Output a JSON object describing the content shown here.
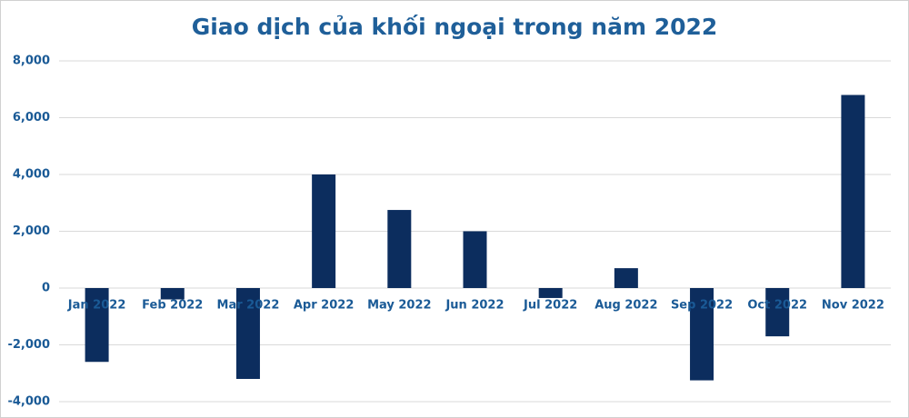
{
  "chart_data": {
    "type": "bar",
    "title": "Giao dịch của khối ngoại trong năm 2022",
    "categories": [
      "Jan 2022",
      "Feb 2022",
      "Mar 2022",
      "Apr 2022",
      "May 2022",
      "Jun 2022",
      "Jul 2022",
      "Aug 2022",
      "Sep 2022",
      "Oct 2022",
      "Nov 2022"
    ],
    "values": [
      -2600,
      -400,
      -3200,
      4000,
      2750,
      2000,
      -350,
      700,
      -3250,
      -1700,
      6800
    ],
    "color": "#0c2d5e",
    "ylim": [
      -4000,
      8000
    ],
    "yticks": [
      {
        "value": -4000,
        "label": "-4,000"
      },
      {
        "value": -2000,
        "label": "-2,000"
      },
      0,
      {
        "value": 2000,
        "label": "2,000"
      },
      {
        "value": 4000,
        "label": "4,000"
      },
      {
        "value": 6000,
        "label": "6,000"
      },
      {
        "value": 8000,
        "label": "8,000"
      }
    ],
    "grid": true
  }
}
